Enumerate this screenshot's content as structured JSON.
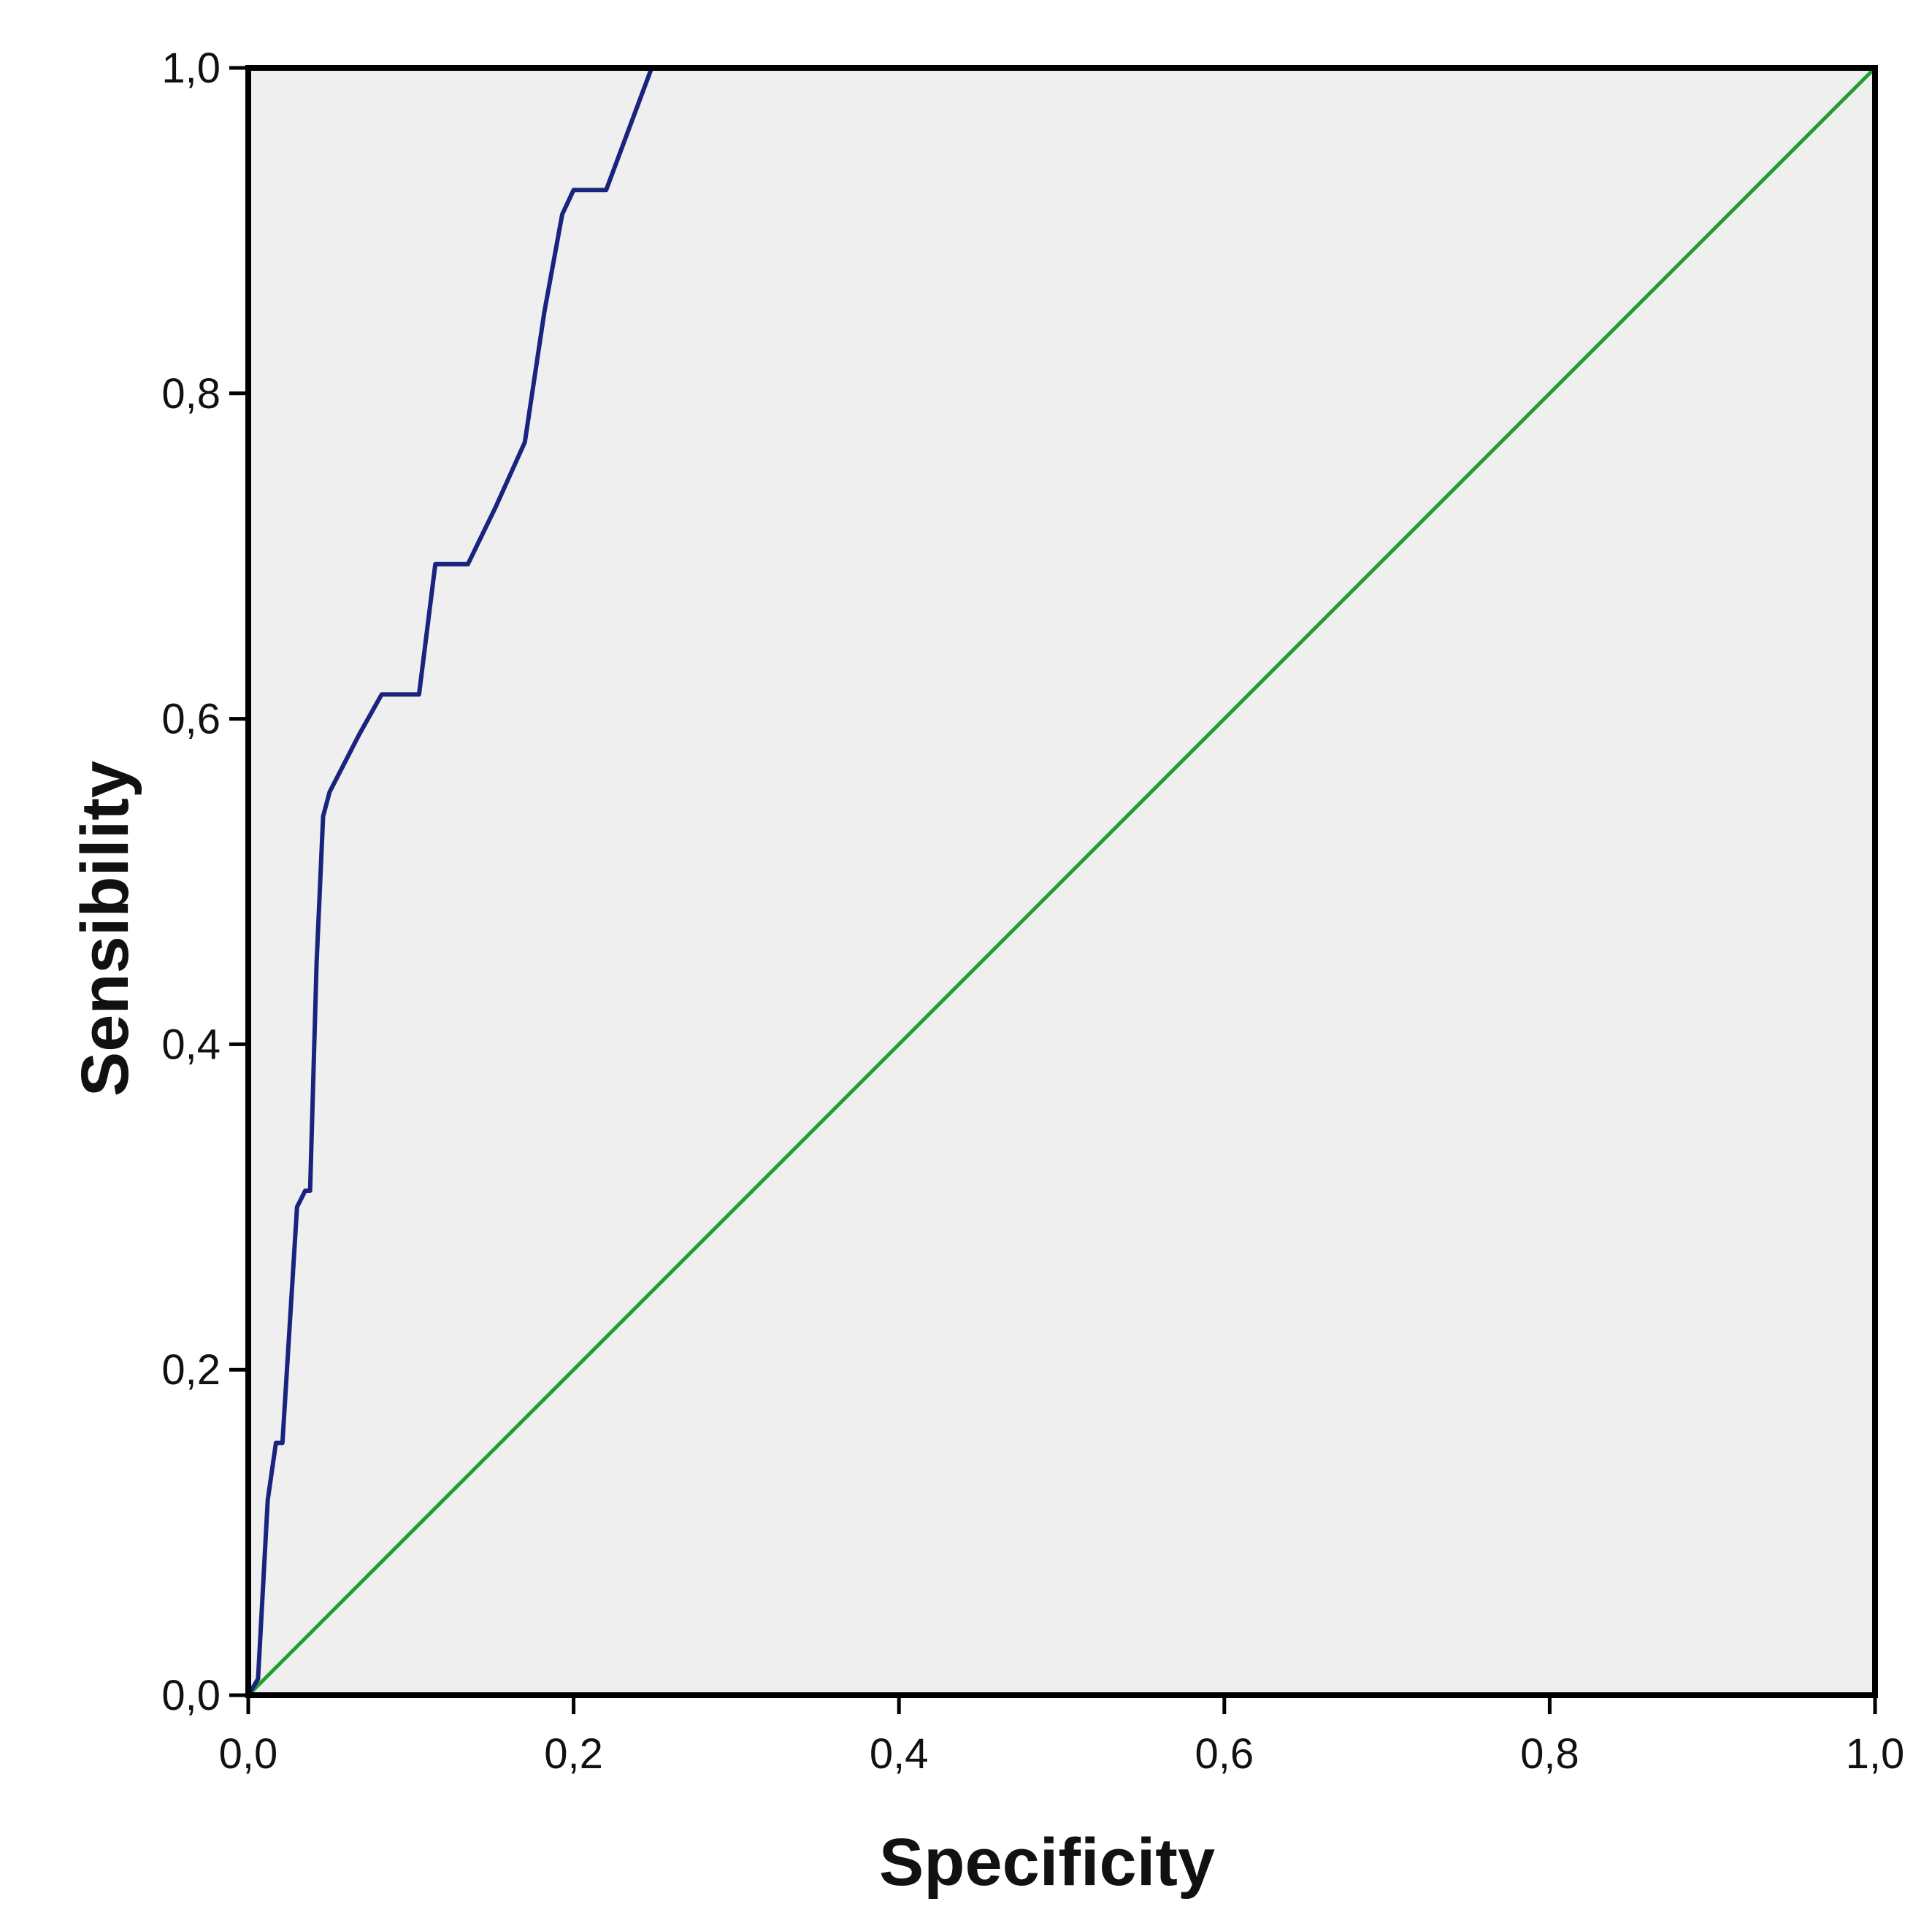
{
  "chart_data": {
    "type": "line",
    "title": "",
    "xlabel": "Specificity",
    "ylabel": "Sensibility",
    "xlim": [
      0,
      1
    ],
    "ylim": [
      0,
      1
    ],
    "grid": false,
    "x_ticks": [
      "0,0",
      "0,2",
      "0,4",
      "0,6",
      "0,8",
      "1,0"
    ],
    "y_ticks": [
      "0,0",
      "0,2",
      "0,4",
      "0,6",
      "0,8",
      "1,0"
    ],
    "series": [
      {
        "color": "#1a237e",
        "x": [
          0.0,
          0.006,
          0.012,
          0.017,
          0.021,
          0.03,
          0.035,
          0.038,
          0.042,
          0.046,
          0.05,
          0.068,
          0.082,
          0.105,
          0.115,
          0.135,
          0.152,
          0.17,
          0.182,
          0.193,
          0.2,
          0.22,
          0.248
        ],
        "y": [
          0.0,
          0.01,
          0.12,
          0.155,
          0.155,
          0.3,
          0.31,
          0.31,
          0.45,
          0.54,
          0.555,
          0.59,
          0.615,
          0.615,
          0.695,
          0.695,
          0.73,
          0.77,
          0.85,
          0.91,
          0.925,
          0.925,
          1.0
        ]
      },
      {
        "color": "#1e9e2a",
        "x": [
          0,
          1
        ],
        "y": [
          0,
          1
        ]
      }
    ]
  },
  "style": {
    "plot_background": "#efefef",
    "frame_color": "#000000",
    "curve_color": "#1a237e",
    "reference_color": "#1e9e2a"
  }
}
